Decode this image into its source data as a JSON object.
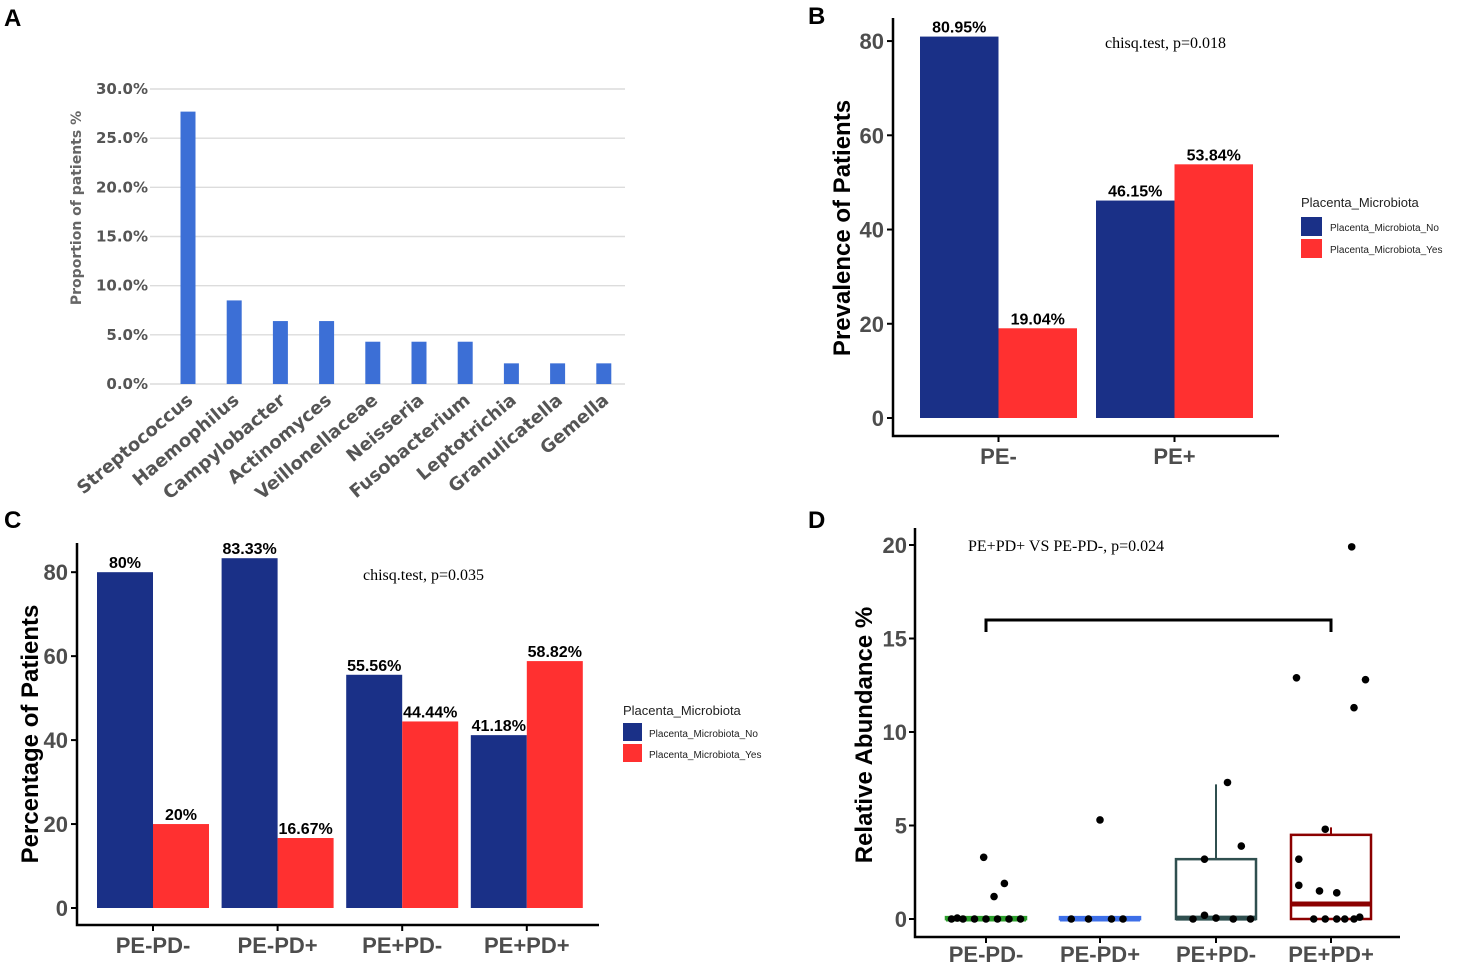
{
  "panels": {
    "a": "A",
    "b": "B",
    "c": "C",
    "d": "D"
  },
  "colors": {
    "blue_bar": "#3c6fd6",
    "no": "#1a3087",
    "yes": "#ff3030",
    "box_pdm": "#2ca02c",
    "box_pdp": "#3d6fe8",
    "box_pdm2": "#2f4f4f",
    "box_pdp2": "#8b0000"
  },
  "chart_data": [
    {
      "id": "A",
      "type": "bar",
      "title": "",
      "ylabel": "Proportion of  patients %",
      "xlabel": "",
      "ylim": [
        0,
        30
      ],
      "yticks": [
        0,
        5,
        10,
        15,
        20,
        25,
        30
      ],
      "ytick_labels": [
        "0.0%",
        "5.0%",
        "10.0%",
        "15.0%",
        "20.0%",
        "25.0%",
        "30.0%"
      ],
      "categories": [
        "Streptococcus",
        "Haemophilus",
        "Campylobacter",
        "Actinomyces",
        "Veillonellaceae",
        "Neisseria",
        "Fusobacterium",
        "Leptotrichia",
        "Granulicatella",
        "Gemella"
      ],
      "values": [
        27.7,
        8.5,
        6.4,
        6.4,
        4.3,
        4.3,
        4.3,
        2.1,
        2.1,
        2.1
      ],
      "grid": true
    },
    {
      "id": "B",
      "type": "bar",
      "ylabel": "Prevalence of Patients",
      "xlabel": "",
      "ylim": [
        0,
        85
      ],
      "yticks": [
        0,
        20,
        40,
        60,
        80
      ],
      "ytick_labels": [
        "0",
        "20",
        "40",
        "60",
        "80"
      ],
      "categories": [
        "PE-",
        "PE+"
      ],
      "series": [
        {
          "name": "Placenta_Microbiota_No",
          "values": [
            80.95,
            46.15
          ],
          "labels": [
            "80.95%",
            "46.15%"
          ]
        },
        {
          "name": "Placenta_Microbiota_Yes",
          "values": [
            19.04,
            53.84
          ],
          "labels": [
            "19.04%",
            "53.84%"
          ]
        }
      ],
      "annotation": "chisq.test, p=0.018",
      "legend_title": "Placenta_Microbiota",
      "legend_position": "right"
    },
    {
      "id": "C",
      "type": "bar",
      "ylabel": "Percentage of Patients",
      "xlabel": "",
      "ylim": [
        0,
        86
      ],
      "yticks": [
        0,
        20,
        40,
        60,
        80
      ],
      "ytick_labels": [
        "0",
        "20",
        "40",
        "60",
        "80"
      ],
      "categories": [
        "PE-PD-",
        "PE-PD+",
        "PE+PD-",
        "PE+PD+"
      ],
      "series": [
        {
          "name": "Placenta_Microbiota_No",
          "values": [
            80,
            83.33,
            55.56,
            41.18
          ],
          "labels": [
            "80%",
            "83.33%",
            "55.56%",
            "41.18%"
          ]
        },
        {
          "name": "Placenta_Microbiota_Yes",
          "values": [
            20,
            16.67,
            44.44,
            58.82
          ],
          "labels": [
            "20%",
            "16.67%",
            "44.44%",
            "58.82%"
          ]
        }
      ],
      "annotation": "chisq.test, p=0.035",
      "legend_title": "Placenta_Microbiota",
      "legend_position": "right"
    },
    {
      "id": "D",
      "type": "box",
      "ylabel": "Relative Abundance %",
      "xlabel": "",
      "ylim": [
        -1,
        21
      ],
      "yticks": [
        0,
        5,
        10,
        15,
        20
      ],
      "ytick_labels": [
        "0",
        "5",
        "10",
        "15",
        "20"
      ],
      "categories": [
        "PE-PD-",
        "PE-PD+",
        "PE+PD-",
        "PE+PD+"
      ],
      "boxes": [
        {
          "q1": 0,
          "median": 0,
          "q3": 0.1,
          "whisker_low": 0,
          "whisker_high": 0.1
        },
        {
          "q1": 0,
          "median": 0,
          "q3": 0.1,
          "whisker_low": 0,
          "whisker_high": 0.1
        },
        {
          "q1": 0,
          "median": 0.05,
          "q3": 3.2,
          "whisker_low": 0,
          "whisker_high": 7.2
        },
        {
          "q1": 0,
          "median": 0.8,
          "q3": 4.5,
          "whisker_low": 0,
          "whisker_high": 4.9
        }
      ],
      "points": [
        [
          [
            -0.3,
            0
          ],
          [
            -0.2,
            0
          ],
          [
            -0.1,
            0
          ],
          [
            0,
            0
          ],
          [
            0.1,
            0
          ],
          [
            0.2,
            0
          ],
          [
            0.3,
            0
          ],
          [
            -0.25,
            0.05
          ],
          [
            -0.02,
            3.3
          ],
          [
            0.07,
            1.2
          ],
          [
            0.16,
            1.9
          ]
        ],
        [
          [
            -0.25,
            0
          ],
          [
            -0.1,
            0
          ],
          [
            0.1,
            0
          ],
          [
            0.2,
            0
          ],
          [
            0.0,
            5.3
          ]
        ],
        [
          [
            -0.2,
            0
          ],
          [
            -0.1,
            0.2
          ],
          [
            0.0,
            0.05
          ],
          [
            0.15,
            0
          ],
          [
            0.3,
            0
          ],
          [
            -0.1,
            3.2
          ],
          [
            0.22,
            3.9
          ],
          [
            0.1,
            7.3
          ]
        ],
        [
          [
            -0.15,
            0
          ],
          [
            -0.05,
            0
          ],
          [
            0.05,
            0
          ],
          [
            0.12,
            0
          ],
          [
            0.2,
            0
          ],
          [
            0.25,
            0.1
          ],
          [
            -0.28,
            3.2
          ],
          [
            -0.1,
            1.5
          ],
          [
            -0.28,
            1.8
          ],
          [
            0.05,
            1.4
          ],
          [
            -0.05,
            4.8
          ],
          [
            -0.3,
            12.9
          ],
          [
            0.2,
            11.3
          ],
          [
            0.3,
            12.8
          ],
          [
            0.18,
            19.9
          ]
        ]
      ],
      "comparison_groups": [
        "PE-PD-",
        "PE+PD+"
      ],
      "annotation": "PE+PD+ VS PE-PD-, p=0.024"
    }
  ]
}
